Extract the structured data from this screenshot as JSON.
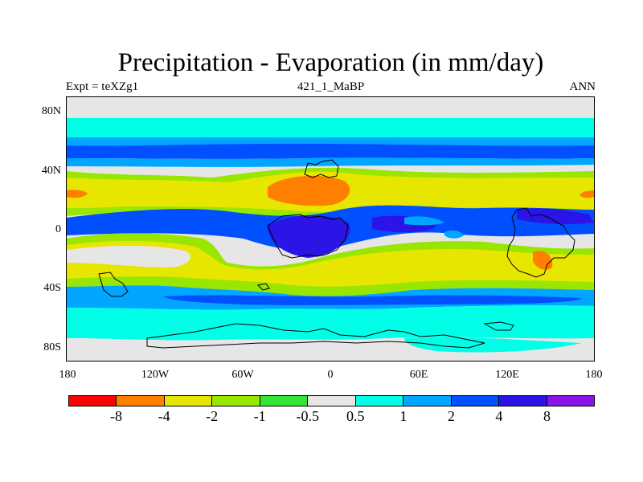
{
  "title": "Precipitation - Evaporation (in mm/day)",
  "subtitle_left": "Expt = teXZg1",
  "subtitle_center": "421_1_MaBP",
  "subtitle_right": "ANN",
  "y_tick_labels": [
    "80N",
    "40N",
    "0",
    "40S",
    "80S"
  ],
  "x_tick_labels": [
    "180",
    "120W",
    "60W",
    "0",
    "60E",
    "120E",
    "180"
  ],
  "colorbar": {
    "labels": [
      "-8",
      "-4",
      "-2",
      "-1",
      "-0.5",
      "0.5",
      "1",
      "2",
      "4",
      "8"
    ],
    "colors": [
      "#ff0000",
      "#ff8000",
      "#e6e600",
      "#99e600",
      "#33e633",
      "#e6e6e6",
      "#00ffe6",
      "#00a6ff",
      "#0050ff",
      "#2a14e6",
      "#8a14e6"
    ]
  },
  "map": {
    "projection": "cylindrical equidistant",
    "lon_range": [
      -180,
      180
    ],
    "lat_range": [
      -90,
      90
    ],
    "background_class": "-0.5 to 0.5"
  }
}
